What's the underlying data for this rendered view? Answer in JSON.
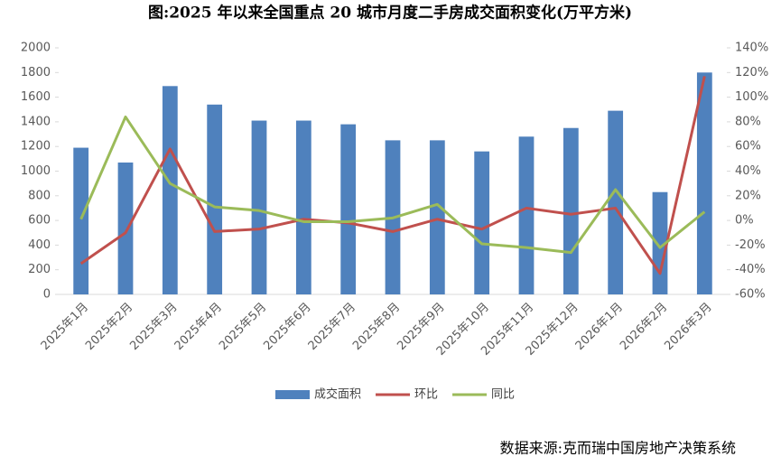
{
  "chart_data": {
    "type": "combo",
    "title": "图:2025 年以来全国重点 20 城市月度二手房成交面积变化(万平方米)",
    "source": "数据来源:克而瑞中国房地产决策系统",
    "categories": [
      "2025年1月",
      "2025年2月",
      "2025年3月",
      "2025年4月",
      "2025年5月",
      "2025年6月",
      "2025年7月",
      "2025年8月",
      "2025年9月",
      "2025年10月",
      "2025年11月",
      "2025年12月",
      "2026年1月",
      "2026年2月",
      "2026年3月"
    ],
    "series": [
      {
        "name": "成交面积",
        "type": "bar",
        "color": "#4f81bd",
        "values": [
          1190,
          1070,
          1690,
          1540,
          1410,
          1410,
          1380,
          1250,
          1250,
          1160,
          1280,
          1350,
          1490,
          830,
          1800
        ]
      },
      {
        "name": "环比",
        "type": "line",
        "axis": "y2",
        "color": "#c0504d",
        "values": [
          -35,
          -10,
          58,
          -9,
          -7,
          1,
          -2,
          -9,
          1,
          -7,
          10,
          5,
          10,
          -43,
          117
        ]
      },
      {
        "name": "同比",
        "type": "line",
        "axis": "y2",
        "color": "#9bbb59",
        "values": [
          1,
          84,
          30,
          11,
          8,
          -1,
          -1,
          2,
          13,
          -19,
          -22,
          -26,
          25,
          -22,
          7
        ]
      }
    ],
    "ylim": [
      0,
      2000
    ],
    "yticks": [
      0,
      200,
      400,
      600,
      800,
      1000,
      1200,
      1400,
      1600,
      1800,
      2000
    ],
    "y2lim": [
      -60,
      140
    ],
    "y2ticks": [
      {
        "value": -60,
        "label": "-60%"
      },
      {
        "value": -40,
        "label": "-40%"
      },
      {
        "value": -20,
        "label": "-20%"
      },
      {
        "value": 0,
        "label": "0%"
      },
      {
        "value": 20,
        "label": "20%"
      },
      {
        "value": 40,
        "label": "40%"
      },
      {
        "value": 60,
        "label": "60%"
      },
      {
        "value": 80,
        "label": "80%"
      },
      {
        "value": 100,
        "label": "100%"
      },
      {
        "value": 120,
        "label": "120%"
      },
      {
        "value": 140,
        "label": "140%"
      }
    ],
    "legend": "bottom"
  }
}
